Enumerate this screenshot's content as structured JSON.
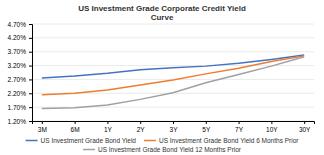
{
  "chart_data": {
    "type": "line",
    "title": "US Investment Grade Corporate Credit Yield\nCurve",
    "categories": [
      "3M",
      "6M",
      "1Y",
      "2Y",
      "3Y",
      "5Y",
      "7Y",
      "10Y",
      "30Y"
    ],
    "series": [
      {
        "name": "US Investment Grade Bond Yield",
        "color": "#4472c4",
        "values": [
          2.75,
          2.82,
          2.92,
          3.05,
          3.12,
          3.18,
          3.28,
          3.42,
          3.58
        ]
      },
      {
        "name": "US Investment Grade Bond Yield 6 Months Prior",
        "color": "#ed7d31",
        "values": [
          2.15,
          2.2,
          2.32,
          2.5,
          2.68,
          2.9,
          3.1,
          3.35,
          3.55
        ]
      },
      {
        "name": "US Investment Grade Bond Yield 12 Months Prior",
        "color": "#a0a0a0",
        "values": [
          1.65,
          1.68,
          1.78,
          1.98,
          2.22,
          2.58,
          2.88,
          3.18,
          3.52
        ]
      }
    ],
    "ylim": [
      1.2,
      4.7
    ],
    "yticks": [
      {
        "value": 1.2,
        "label": "1.20%"
      },
      {
        "value": 1.7,
        "label": "1.70%"
      },
      {
        "value": 2.2,
        "label": "2.20%"
      },
      {
        "value": 2.7,
        "label": "2.70%"
      },
      {
        "value": 3.2,
        "label": "3.20%"
      },
      {
        "value": 3.7,
        "label": "3.70%"
      },
      {
        "value": 4.2,
        "label": "4.20%"
      },
      {
        "value": 4.7,
        "label": "4.70%"
      }
    ],
    "grid": true,
    "legend": "bottom"
  }
}
